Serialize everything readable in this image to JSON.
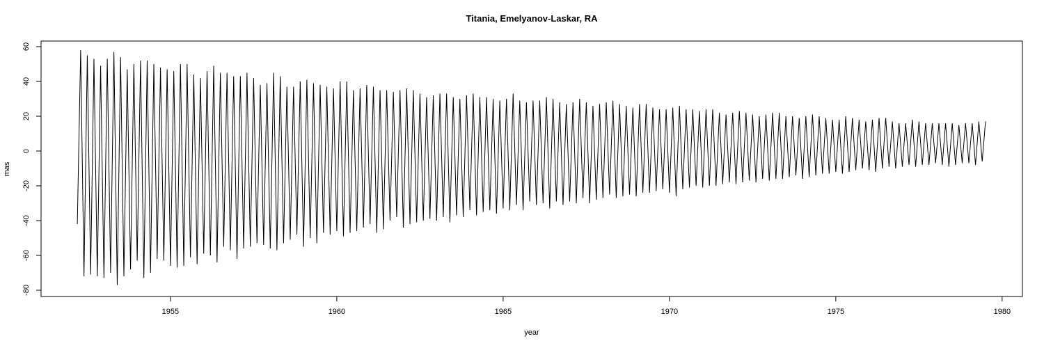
{
  "chart_data": {
    "type": "line",
    "title": "Titania, Emelyanov-Laskar, RA",
    "x_label": "year",
    "y_label": "mas",
    "xlim": [
      1951.11,
      1980.61
    ],
    "ylim": [
      -83.6,
      63.2
    ],
    "xticks": [
      1955,
      1960,
      1965,
      1970,
      1975,
      1980
    ],
    "yticks": [
      -80,
      -60,
      -40,
      -20,
      0,
      20,
      40,
      60
    ],
    "series": [
      {
        "color": "#000000",
        "x": [
          1952.2,
          1952.3,
          1952.4,
          1952.5,
          1952.6,
          1952.7,
          1952.8,
          1952.9,
          1953.0,
          1953.1,
          1953.2,
          1953.3,
          1953.4,
          1953.5,
          1953.6,
          1953.7,
          1953.8,
          1953.9,
          1954.0,
          1954.1,
          1954.2,
          1954.3,
          1954.4,
          1954.5,
          1954.6,
          1954.7,
          1954.8,
          1954.9,
          1955.0,
          1955.1,
          1955.2,
          1955.3,
          1955.4,
          1955.5,
          1955.6,
          1955.7,
          1955.8,
          1955.9,
          1956.0,
          1956.1,
          1956.2,
          1956.3,
          1956.4,
          1956.5,
          1956.6,
          1956.7,
          1956.8,
          1956.9,
          1957.0,
          1957.1,
          1957.2,
          1957.3,
          1957.4,
          1957.5,
          1957.6,
          1957.7,
          1957.8,
          1957.9,
          1958.0,
          1958.1,
          1958.2,
          1958.3,
          1958.4,
          1958.5,
          1958.6,
          1958.7,
          1958.8,
          1958.9,
          1959.0,
          1959.1,
          1959.2,
          1959.3,
          1959.4,
          1959.5,
          1959.6,
          1959.7,
          1959.8,
          1959.9,
          1960.0,
          1960.1,
          1960.2,
          1960.3,
          1960.4,
          1960.5,
          1960.6,
          1960.7,
          1960.8,
          1960.9,
          1961.0,
          1961.1,
          1961.2,
          1961.3,
          1961.4,
          1961.5,
          1961.6,
          1961.7,
          1961.8,
          1961.9,
          1962.0,
          1962.1,
          1962.2,
          1962.3,
          1962.4,
          1962.5,
          1962.6,
          1962.7,
          1962.8,
          1962.9,
          1963.0,
          1963.1,
          1963.2,
          1963.3,
          1963.4,
          1963.5,
          1963.6,
          1963.7,
          1963.8,
          1963.9,
          1964.0,
          1964.1,
          1964.2,
          1964.3,
          1964.4,
          1964.5,
          1964.6,
          1964.7,
          1964.8,
          1964.9,
          1965.0,
          1965.1,
          1965.2,
          1965.3,
          1965.4,
          1965.5,
          1965.6,
          1965.7,
          1965.8,
          1965.9,
          1966.0,
          1966.1,
          1966.2,
          1966.3,
          1966.4,
          1966.5,
          1966.6,
          1966.7,
          1966.8,
          1966.9,
          1967.0,
          1967.1,
          1967.2,
          1967.3,
          1967.4,
          1967.5,
          1967.6,
          1967.7,
          1967.8,
          1967.9,
          1968.0,
          1968.1,
          1968.2,
          1968.3,
          1968.4,
          1968.5,
          1968.6,
          1968.7,
          1968.8,
          1968.9,
          1969.0,
          1969.1,
          1969.2,
          1969.3,
          1969.4,
          1969.5,
          1969.6,
          1969.7,
          1969.8,
          1969.9,
          1970.0,
          1970.1,
          1970.2,
          1970.3,
          1970.4,
          1970.5,
          1970.6,
          1970.7,
          1970.8,
          1970.9,
          1971.0,
          1971.1,
          1971.2,
          1971.3,
          1971.4,
          1971.5,
          1971.6,
          1971.7,
          1971.8,
          1971.9,
          1972.0,
          1972.1,
          1972.2,
          1972.3,
          1972.4,
          1972.5,
          1972.6,
          1972.7,
          1972.8,
          1972.9,
          1973.0,
          1973.1,
          1973.2,
          1973.3,
          1973.4,
          1973.5,
          1973.6,
          1973.7,
          1973.8,
          1973.9,
          1974.0,
          1974.1,
          1974.2,
          1974.3,
          1974.4,
          1974.5,
          1974.6,
          1974.7,
          1974.8,
          1974.9,
          1975.0,
          1975.1,
          1975.2,
          1975.3,
          1975.4,
          1975.5,
          1975.6,
          1975.7,
          1975.8,
          1975.9,
          1976.0,
          1976.1,
          1976.2,
          1976.3,
          1976.4,
          1976.5,
          1976.6,
          1976.7,
          1976.8,
          1976.9,
          1977.0,
          1977.1,
          1977.2,
          1977.3,
          1977.4,
          1977.5,
          1977.6,
          1977.7,
          1977.8,
          1977.9,
          1978.0,
          1978.1,
          1978.2,
          1978.3,
          1978.4,
          1978.5,
          1978.6,
          1978.7,
          1978.8,
          1978.9,
          1979.0,
          1979.1,
          1979.2,
          1979.3,
          1979.4,
          1979.5
        ],
        "values": [
          -42,
          58,
          -72,
          55,
          -71,
          53,
          -72,
          49,
          -73,
          53,
          -70,
          57,
          -77,
          54,
          -72,
          47,
          -68,
          50,
          -63,
          52,
          -73,
          52,
          -70,
          50,
          -62,
          48,
          -63,
          47,
          -66,
          46,
          -67,
          50,
          -66,
          50,
          -61,
          44,
          -65,
          42,
          -59,
          46,
          -60,
          49,
          -64,
          45,
          -55,
          45,
          -57,
          43,
          -62,
          43,
          -56,
          45,
          -55,
          42,
          -53,
          38,
          -54,
          39,
          -56,
          45,
          -57,
          43,
          -53,
          37,
          -51,
          37,
          -48,
          40,
          -55,
          41,
          -50,
          39,
          -53,
          38,
          -47,
          37,
          -48,
          36,
          -46,
          40,
          -49,
          40,
          -47,
          35,
          -46,
          36,
          -44,
          38,
          -42,
          37,
          -47,
          35,
          -45,
          35,
          -40,
          34,
          -38,
          35,
          -44,
          36,
          -42,
          35,
          -41,
          33,
          -40,
          31,
          -39,
          32,
          -40,
          33,
          -38,
          33,
          -41,
          31,
          -37,
          30,
          -38,
          32,
          -34,
          33,
          -37,
          31,
          -35,
          31,
          -34,
          30,
          -36,
          29,
          -33,
          30,
          -34,
          33,
          -31,
          29,
          -34,
          28,
          -29,
          29,
          -31,
          29,
          -30,
          31,
          -33,
          30,
          -29,
          28,
          -31,
          27,
          -29,
          28,
          -30,
          30,
          -27,
          28,
          -30,
          26,
          -28,
          27,
          -27,
          28,
          -25,
          29,
          -27,
          27,
          -26,
          26,
          -25,
          25,
          -26,
          27,
          -24,
          27,
          -24,
          25,
          -23,
          24,
          -22,
          24,
          -24,
          25,
          -26,
          26,
          -22,
          24,
          -21,
          24,
          -20,
          23,
          -21,
          24,
          -20,
          24,
          -20,
          22,
          -19,
          21,
          -18,
          22,
          -19,
          23,
          -18,
          22,
          -17,
          21,
          -18,
          20,
          -16,
          21,
          -17,
          22,
          -16,
          22,
          -16,
          20,
          -15,
          20,
          -14,
          19,
          -16,
          20,
          -15,
          21,
          -14,
          20,
          -13,
          19,
          -13,
          18,
          -12,
          18,
          -13,
          20,
          -12,
          19,
          -11,
          18,
          -10,
          17,
          -11,
          18,
          -12,
          19,
          -10,
          19,
          -9,
          17,
          -10,
          16,
          -9,
          16,
          -8,
          18,
          -9,
          17,
          -8,
          16,
          -8,
          16,
          -7,
          16,
          -8,
          16,
          -9,
          16,
          -8,
          15,
          -7,
          16,
          -7,
          16,
          -8,
          17,
          -6,
          17
        ]
      }
    ]
  }
}
